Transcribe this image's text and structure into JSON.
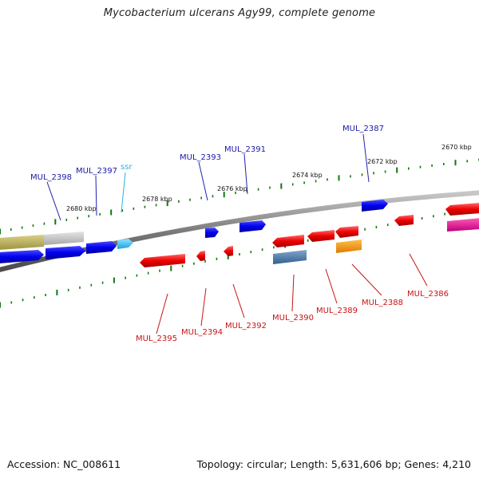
{
  "title": "Mycobacterium ulcerans Agy99, complete genome",
  "footer": {
    "accession": "Accession: NC_008611",
    "summary": "Topology: circular; Length: 5,631,606 bp; Genes: 4,210"
  },
  "colors": {
    "backbone": "#808080",
    "forward_gene": "#0000ee",
    "reverse_gene": "#ee0000",
    "forward_label": "#1a1aa8",
    "reverse_label": "#c81414",
    "ssr": "#22b4e6",
    "tick": "#117711"
  },
  "scale_labels": [
    "2680 kbp",
    "2678 kbp",
    "2676 kbp",
    "2674 kbp",
    "2672 kbp",
    "2670 kbp"
  ],
  "forward_labels": [
    "MUL_2398",
    "MUL_2397",
    "ssr",
    "MUL_2393",
    "MUL_2391",
    "MUL_2387"
  ],
  "reverse_labels": [
    "MUL_2395",
    "MUL_2394",
    "MUL_2392",
    "MUL_2390",
    "MUL_2389",
    "MUL_2388",
    "MUL_2386"
  ]
}
